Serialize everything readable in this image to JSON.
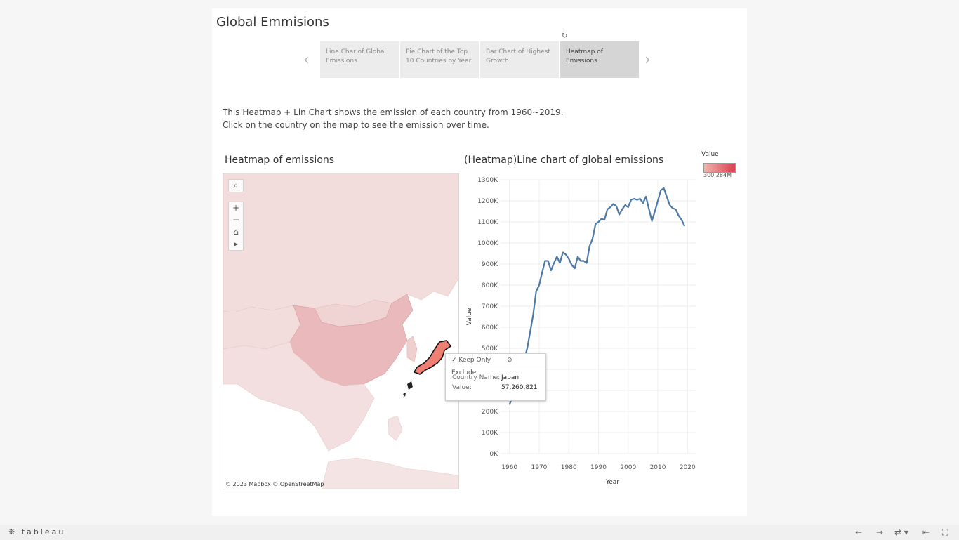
{
  "dashboard": {
    "title": "Global Emmisions"
  },
  "story": {
    "tabs": [
      {
        "label": "Line Char of Global Emissions"
      },
      {
        "label": "Pie Chart of the Top 10 Countries by Year"
      },
      {
        "label": "Bar Chart of Highest Growth"
      },
      {
        "label": "Heatmap of Emissions"
      }
    ],
    "active_index": 3
  },
  "description": {
    "line1": "This Heatmap + Lin Chart shows the emission of each country from 1960~2019.",
    "line2": "Click on the country on the map to see the emission over time."
  },
  "map": {
    "title": "Heatmap of emissions",
    "attribution": "© 2023 Mapbox  © OpenStreetMap",
    "selected_country": "Japan",
    "icons": [
      "search-icon",
      "zoom-in-icon",
      "zoom-out-icon",
      "home-icon",
      "play-icon"
    ],
    "colors": {
      "base": "#f2dcdc",
      "china": "#e9b9bb",
      "japan": "#ee7f72"
    }
  },
  "legend": {
    "title": "Value",
    "min_label": "300",
    "max_label": "284M"
  },
  "tooltip": {
    "keep_only": "Keep Only",
    "exclude": "Exclude",
    "country_label": "Country Name:",
    "country_value": "Japan",
    "value_label": "Value:",
    "value_value": "57,260,821"
  },
  "chart_data": {
    "type": "line",
    "title": "(Heatmap)Line chart of global emissions",
    "xlabel": "Year",
    "ylabel": "Value",
    "xlim": [
      1957,
      2023
    ],
    "ylim": [
      0,
      1300
    ],
    "x_ticks": [
      1960,
      1970,
      1980,
      1990,
      2000,
      2010,
      2020
    ],
    "y_ticks": [
      0,
      100,
      200,
      300,
      400,
      500,
      600,
      700,
      800,
      900,
      1000,
      1100,
      1200,
      1300
    ],
    "y_tick_labels": [
      "0K",
      "100K",
      "200K",
      "300K",
      "400K",
      "500K",
      "600K",
      "700K",
      "800K",
      "900K",
      "1000K",
      "1100K",
      "1200K",
      "1300K"
    ],
    "grid": true,
    "series": [
      {
        "color": "#4e79a7",
        "x": [
          1960,
          1961,
          1962,
          1963,
          1964,
          1965,
          1966,
          1967,
          1968,
          1969,
          1970,
          1971,
          1972,
          1973,
          1974,
          1975,
          1976,
          1977,
          1978,
          1979,
          1980,
          1981,
          1982,
          1983,
          1984,
          1985,
          1986,
          1987,
          1988,
          1989,
          1990,
          1991,
          1992,
          1993,
          1994,
          1995,
          1996,
          1997,
          1998,
          1999,
          2000,
          2001,
          2002,
          2003,
          2004,
          2005,
          2006,
          2007,
          2008,
          2009,
          2010,
          2011,
          2012,
          2013,
          2014,
          2015,
          2016,
          2017,
          2018,
          2019
        ],
        "y": [
          232,
          270,
          305,
          350,
          400,
          448,
          500,
          580,
          660,
          770,
          800,
          860,
          915,
          915,
          870,
          905,
          935,
          905,
          955,
          945,
          925,
          895,
          880,
          935,
          915,
          915,
          905,
          985,
          1020,
          1090,
          1100,
          1115,
          1110,
          1160,
          1170,
          1185,
          1175,
          1135,
          1160,
          1180,
          1170,
          1205,
          1210,
          1205,
          1210,
          1190,
          1220,
          1160,
          1105,
          1150,
          1200,
          1250,
          1260,
          1220,
          1180,
          1165,
          1160,
          1130,
          1110,
          1080
        ]
      }
    ]
  }
}
